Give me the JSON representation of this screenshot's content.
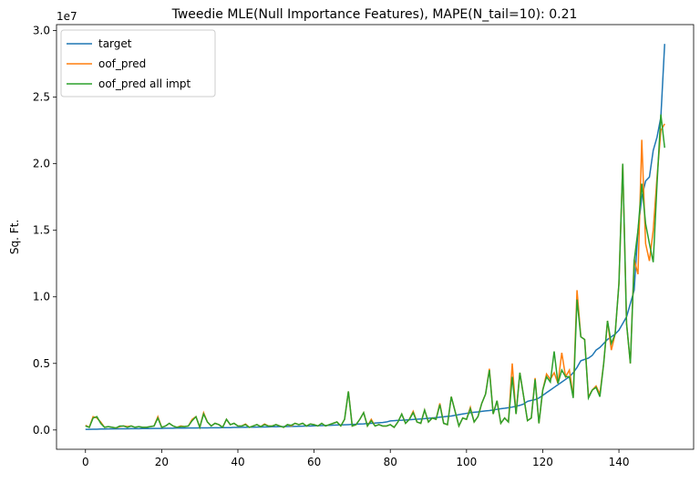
{
  "chart_data": {
    "type": "line",
    "title": "Tweedie MLE(Null Importance Features), MAPE(N_tail=10): 0.21",
    "ylabel": "Sq. Ft.",
    "y_offset_label": "1e7",
    "legend": "upper left",
    "grid": false,
    "xlim": [
      -7.6,
      159.6
    ],
    "ylim": [
      -0.145,
      3.045
    ],
    "xticks": [
      0,
      20,
      40,
      60,
      80,
      100,
      120,
      140
    ],
    "yticks": [
      {
        "value": 0,
        "label": "0.0"
      },
      0.5,
      {
        "value": 1,
        "label": "1.0"
      },
      1.5,
      {
        "value": 2,
        "label": "2.0"
      },
      2.5,
      {
        "value": 3,
        "label": "3.0"
      }
    ],
    "x": [
      0,
      1,
      2,
      3,
      4,
      5,
      6,
      7,
      8,
      9,
      10,
      11,
      12,
      13,
      14,
      15,
      16,
      17,
      18,
      19,
      20,
      21,
      22,
      23,
      24,
      25,
      26,
      27,
      28,
      29,
      30,
      31,
      32,
      33,
      34,
      35,
      36,
      37,
      38,
      39,
      40,
      41,
      42,
      43,
      44,
      45,
      46,
      47,
      48,
      49,
      50,
      51,
      52,
      53,
      54,
      55,
      56,
      57,
      58,
      59,
      60,
      61,
      62,
      63,
      64,
      65,
      66,
      67,
      68,
      69,
      70,
      71,
      72,
      73,
      74,
      75,
      76,
      77,
      78,
      79,
      80,
      81,
      82,
      83,
      84,
      85,
      86,
      87,
      88,
      89,
      90,
      91,
      92,
      93,
      94,
      95,
      96,
      97,
      98,
      99,
      100,
      101,
      102,
      103,
      104,
      105,
      106,
      107,
      108,
      109,
      110,
      111,
      112,
      113,
      114,
      115,
      116,
      117,
      118,
      119,
      120,
      121,
      122,
      123,
      124,
      125,
      126,
      127,
      128,
      129,
      130,
      131,
      132,
      133,
      134,
      135,
      136,
      137,
      138,
      139,
      140,
      141,
      142,
      143,
      144,
      145,
      146,
      147,
      148,
      149,
      150,
      151,
      152
    ],
    "series": [
      {
        "name": "target",
        "color": "#1f77b4",
        "values": [
          0.005,
          0.005,
          0.006,
          0.006,
          0.007,
          0.007,
          0.008,
          0.008,
          0.008,
          0.009,
          0.009,
          0.009,
          0.01,
          0.01,
          0.01,
          0.011,
          0.011,
          0.011,
          0.012,
          0.012,
          0.012,
          0.013,
          0.013,
          0.013,
          0.014,
          0.014,
          0.014,
          0.015,
          0.015,
          0.015,
          0.016,
          0.016,
          0.016,
          0.017,
          0.017,
          0.017,
          0.018,
          0.018,
          0.018,
          0.019,
          0.019,
          0.02,
          0.02,
          0.021,
          0.021,
          0.022,
          0.022,
          0.023,
          0.023,
          0.024,
          0.024,
          0.025,
          0.025,
          0.026,
          0.027,
          0.027,
          0.028,
          0.029,
          0.03,
          0.03,
          0.031,
          0.032,
          0.033,
          0.034,
          0.035,
          0.036,
          0.037,
          0.038,
          0.039,
          0.04,
          0.042,
          0.043,
          0.045,
          0.046,
          0.048,
          0.05,
          0.052,
          0.054,
          0.056,
          0.06,
          0.068,
          0.07,
          0.072,
          0.073,
          0.075,
          0.077,
          0.079,
          0.081,
          0.083,
          0.085,
          0.088,
          0.09,
          0.093,
          0.096,
          0.099,
          0.102,
          0.105,
          0.11,
          0.115,
          0.12,
          0.125,
          0.13,
          0.133,
          0.136,
          0.14,
          0.143,
          0.146,
          0.15,
          0.155,
          0.16,
          0.163,
          0.167,
          0.172,
          0.178,
          0.185,
          0.195,
          0.215,
          0.222,
          0.228,
          0.24,
          0.26,
          0.28,
          0.3,
          0.32,
          0.34,
          0.36,
          0.38,
          0.4,
          0.43,
          0.47,
          0.52,
          0.53,
          0.54,
          0.56,
          0.6,
          0.62,
          0.65,
          0.68,
          0.7,
          0.72,
          0.75,
          0.8,
          0.85,
          0.95,
          1.05,
          1.5,
          1.75,
          1.87,
          1.9,
          2.1,
          2.2,
          2.35,
          2.9
        ]
      },
      {
        "name": "oof_pred",
        "color": "#ff7f0e",
        "values": [
          0.035,
          0.02,
          0.1,
          0.09,
          0.06,
          0.02,
          0.025,
          0.02,
          0.015,
          0.025,
          0.03,
          0.025,
          0.03,
          0.02,
          0.025,
          0.02,
          0.02,
          0.025,
          0.03,
          0.1,
          0.02,
          0.03,
          0.05,
          0.03,
          0.02,
          0.03,
          0.025,
          0.03,
          0.08,
          0.1,
          0.02,
          0.13,
          0.06,
          0.03,
          0.05,
          0.04,
          0.02,
          0.08,
          0.04,
          0.05,
          0.03,
          0.03,
          0.045,
          0.02,
          0.03,
          0.04,
          0.025,
          0.045,
          0.03,
          0.03,
          0.04,
          0.03,
          0.02,
          0.04,
          0.03,
          0.05,
          0.04,
          0.05,
          0.03,
          0.045,
          0.04,
          0.03,
          0.05,
          0.03,
          0.04,
          0.05,
          0.06,
          0.03,
          0.08,
          0.29,
          0.03,
          0.04,
          0.08,
          0.13,
          0.03,
          0.08,
          0.03,
          0.04,
          0.03,
          0.03,
          0.04,
          0.02,
          0.06,
          0.12,
          0.05,
          0.08,
          0.14,
          0.06,
          0.05,
          0.15,
          0.06,
          0.09,
          0.08,
          0.2,
          0.05,
          0.04,
          0.25,
          0.14,
          0.03,
          0.09,
          0.08,
          0.17,
          0.06,
          0.1,
          0.2,
          0.27,
          0.46,
          0.12,
          0.22,
          0.05,
          0.09,
          0.06,
          0.5,
          0.12,
          0.43,
          0.25,
          0.07,
          0.09,
          0.39,
          0.05,
          0.3,
          0.42,
          0.38,
          0.43,
          0.35,
          0.58,
          0.4,
          0.45,
          0.25,
          1.05,
          0.7,
          0.68,
          0.25,
          0.3,
          0.33,
          0.27,
          0.5,
          0.82,
          0.6,
          0.72,
          1.1,
          2.0,
          0.8,
          0.5,
          1.28,
          1.17,
          2.18,
          1.4,
          1.27,
          1.5,
          1.9,
          2.25,
          2.3
        ]
      },
      {
        "name": "oof_pred all impt",
        "color": "#2ca02c",
        "values": [
          0.03,
          0.02,
          0.09,
          0.1,
          0.05,
          0.02,
          0.025,
          0.02,
          0.015,
          0.03,
          0.03,
          0.02,
          0.03,
          0.02,
          0.025,
          0.02,
          0.02,
          0.025,
          0.03,
          0.09,
          0.02,
          0.03,
          0.05,
          0.03,
          0.02,
          0.025,
          0.025,
          0.03,
          0.07,
          0.1,
          0.02,
          0.12,
          0.06,
          0.03,
          0.05,
          0.04,
          0.02,
          0.08,
          0.04,
          0.05,
          0.03,
          0.03,
          0.04,
          0.02,
          0.03,
          0.04,
          0.025,
          0.04,
          0.03,
          0.03,
          0.04,
          0.03,
          0.02,
          0.04,
          0.035,
          0.05,
          0.04,
          0.05,
          0.03,
          0.045,
          0.04,
          0.03,
          0.05,
          0.03,
          0.04,
          0.05,
          0.06,
          0.03,
          0.08,
          0.29,
          0.03,
          0.04,
          0.08,
          0.13,
          0.03,
          0.07,
          0.03,
          0.04,
          0.03,
          0.03,
          0.04,
          0.02,
          0.06,
          0.12,
          0.05,
          0.08,
          0.13,
          0.06,
          0.05,
          0.15,
          0.06,
          0.09,
          0.08,
          0.19,
          0.05,
          0.04,
          0.25,
          0.14,
          0.03,
          0.09,
          0.08,
          0.16,
          0.06,
          0.1,
          0.2,
          0.27,
          0.45,
          0.12,
          0.22,
          0.05,
          0.09,
          0.06,
          0.4,
          0.12,
          0.43,
          0.25,
          0.07,
          0.09,
          0.38,
          0.05,
          0.3,
          0.4,
          0.36,
          0.59,
          0.35,
          0.45,
          0.4,
          0.4,
          0.24,
          0.98,
          0.7,
          0.68,
          0.24,
          0.3,
          0.32,
          0.25,
          0.5,
          0.82,
          0.65,
          0.72,
          1.1,
          2.0,
          0.8,
          0.5,
          1.27,
          1.5,
          1.85,
          1.55,
          1.4,
          1.26,
          1.85,
          2.37,
          2.12
        ]
      }
    ]
  }
}
